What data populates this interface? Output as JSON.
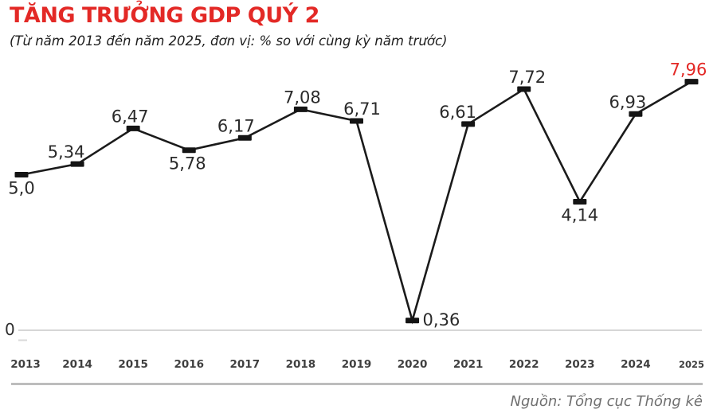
{
  "chart_data": {
    "type": "line",
    "title": "TĂNG TRƯỞNG GDP QUÝ 2",
    "subtitle": "(Từ năm 2013 đến năm 2025, đơn vị: % so với cùng kỳ năm trước)",
    "source": "Nguồn: Tổng cục Thống kê",
    "categories": [
      "2013",
      "2014",
      "2015",
      "2016",
      "2017",
      "2018",
      "2019",
      "2020",
      "2021",
      "2022",
      "2023",
      "2024",
      "2025"
    ],
    "values": [
      5.0,
      5.34,
      6.47,
      5.78,
      6.17,
      7.08,
      6.71,
      0.36,
      6.61,
      7.72,
      4.14,
      6.93,
      7.96
    ],
    "point_labels": [
      "5,0",
      "5,34",
      "6,47",
      "5,78",
      "6,17",
      "7,08",
      "6,71",
      "0,36",
      "6,61",
      "7,72",
      "4,14",
      "6,93",
      "7,96"
    ],
    "label_positions": [
      "below",
      "above",
      "above",
      "below",
      "above",
      "above",
      "above",
      "right",
      "above",
      "above",
      "below",
      "above",
      "above"
    ],
    "label_dx": [
      0,
      -14,
      -4,
      -2,
      -11,
      2,
      7,
      13,
      -13,
      4,
      0,
      -10,
      -4
    ],
    "highlight_index": 12,
    "zero_label": "0",
    "xlabel": "",
    "ylabel": "",
    "ylim": [
      0,
      8.5
    ],
    "grid": false,
    "legend": "none",
    "colors": {
      "title_red": "#e32926",
      "highlight_red": "#e32926",
      "line": "#1b1b1b",
      "marker": "#141414",
      "value_label": "#2a2a2a",
      "year_label": "#3f3f3f",
      "axis": "#c9c9c9",
      "tick": "#d8d8d8",
      "separator": "#bdbdbd",
      "source_text": "#6f6f6f",
      "subtitle_text": "#1d1d1d",
      "background": "#ffffff"
    }
  }
}
